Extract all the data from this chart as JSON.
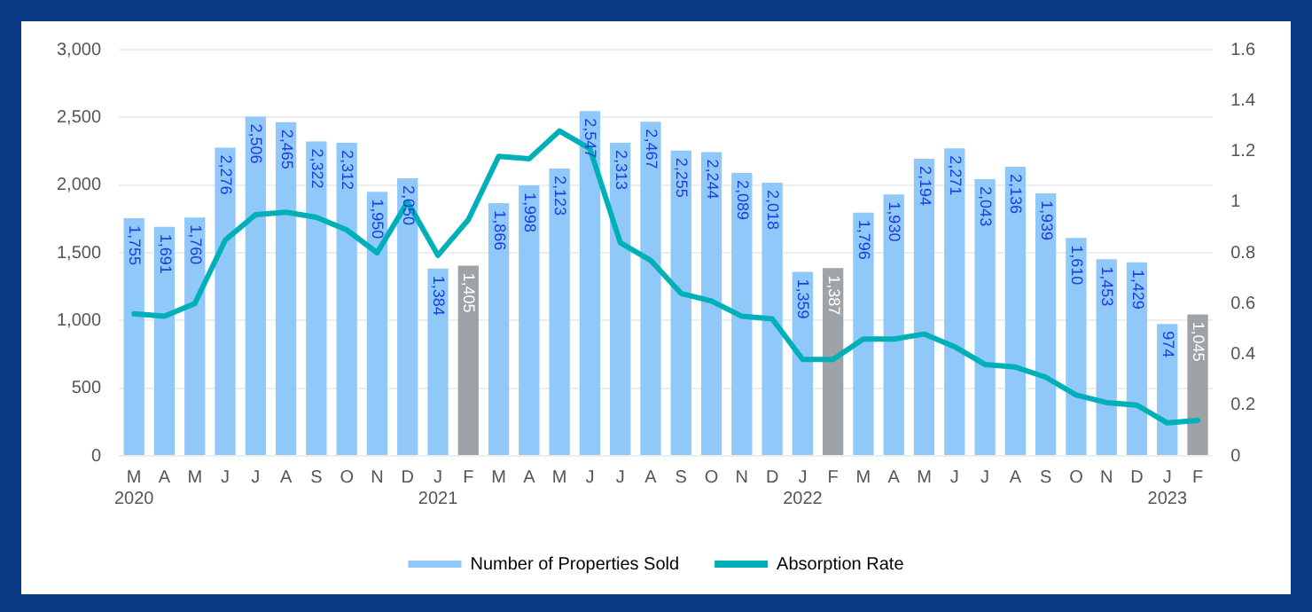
{
  "chart_data": {
    "type": "bar",
    "categories": [
      "M\n2020",
      "A",
      "M",
      "J",
      "J",
      "A",
      "S",
      "O",
      "N",
      "D",
      "J\n2021",
      "F",
      "M",
      "A",
      "M",
      "J",
      "J",
      "A",
      "S",
      "O",
      "N",
      "D",
      "J\n2022",
      "F",
      "M",
      "A",
      "M",
      "J",
      "J",
      "A",
      "S",
      "O",
      "N",
      "D",
      "J\n2023",
      "F"
    ],
    "series": [
      {
        "name": "Number of Properties Sold",
        "color": "#90c8fa",
        "value_labels": [
          "1,755",
          "1,691",
          "1,760",
          "2,276",
          "2,506",
          "2,465",
          "2,322",
          "2,312",
          "1,950",
          "2,050",
          "1,384",
          "1,405",
          "1,866",
          "1,998",
          "2,123",
          "2,547",
          "2,313",
          "2,467",
          "2,255",
          "2,244",
          "2,089",
          "2,018",
          "1,359",
          "1,387",
          "1,796",
          "1,930",
          "2,194",
          "2,271",
          "2,043",
          "2,136",
          "1,939",
          "1,610",
          "1,453",
          "1,429",
          "974",
          "1,045"
        ],
        "colors": [
          "#90c8fa",
          "#90c8fa",
          "#90c8fa",
          "#90c8fa",
          "#90c8fa",
          "#90c8fa",
          "#90c8fa",
          "#90c8fa",
          "#90c8fa",
          "#90c8fa",
          "#90c8fa",
          "#9ea3a8",
          "#90c8fa",
          "#90c8fa",
          "#90c8fa",
          "#90c8fa",
          "#90c8fa",
          "#90c8fa",
          "#90c8fa",
          "#90c8fa",
          "#90c8fa",
          "#90c8fa",
          "#90c8fa",
          "#9ea3a8",
          "#90c8fa",
          "#90c8fa",
          "#90c8fa",
          "#90c8fa",
          "#90c8fa",
          "#90c8fa",
          "#90c8fa",
          "#90c8fa",
          "#90c8fa",
          "#90c8fa",
          "#90c8fa",
          "#9ea3a8"
        ],
        "values": [
          1755,
          1691,
          1760,
          2276,
          2506,
          2465,
          2322,
          2312,
          1950,
          2050,
          1384,
          1405,
          1866,
          1998,
          2123,
          2547,
          2313,
          2467,
          2255,
          2244,
          2089,
          2018,
          1359,
          1387,
          1796,
          1930,
          2194,
          2271,
          2043,
          2136,
          1939,
          1610,
          1453,
          1429,
          974,
          1045
        ]
      },
      {
        "name": "Absorption Rate",
        "type": "line",
        "axis": "y2",
        "color": "#00b0b9",
        "values": [
          0.56,
          0.55,
          0.6,
          0.85,
          0.95,
          0.96,
          0.94,
          0.89,
          0.8,
          1.0,
          0.79,
          0.93,
          1.18,
          1.17,
          1.28,
          1.21,
          0.84,
          0.77,
          0.64,
          0.61,
          0.55,
          0.54,
          0.38,
          0.38,
          0.46,
          0.46,
          0.48,
          0.43,
          0.36,
          0.35,
          0.31,
          0.24,
          0.21,
          0.2,
          0.13,
          0.14
        ]
      }
    ],
    "ylim": [
      0,
      3000
    ],
    "yticks": [
      {
        "value": 0,
        "label": "0"
      },
      {
        "value": 500,
        "label": "500"
      },
      {
        "value": 1000,
        "label": "1,000"
      },
      {
        "value": 1500,
        "label": "1,500"
      },
      {
        "value": 2000,
        "label": "2,000"
      },
      {
        "value": 2500,
        "label": "2,500"
      },
      {
        "value": 3000,
        "label": "3,000"
      }
    ],
    "y2lim": [
      0,
      1.6
    ],
    "y2ticks": [
      0,
      0.2,
      0.4,
      0.6,
      0.8,
      1,
      1.2,
      1.4,
      1.6
    ],
    "grid": "y",
    "legend": "bottom",
    "marker": "none"
  }
}
